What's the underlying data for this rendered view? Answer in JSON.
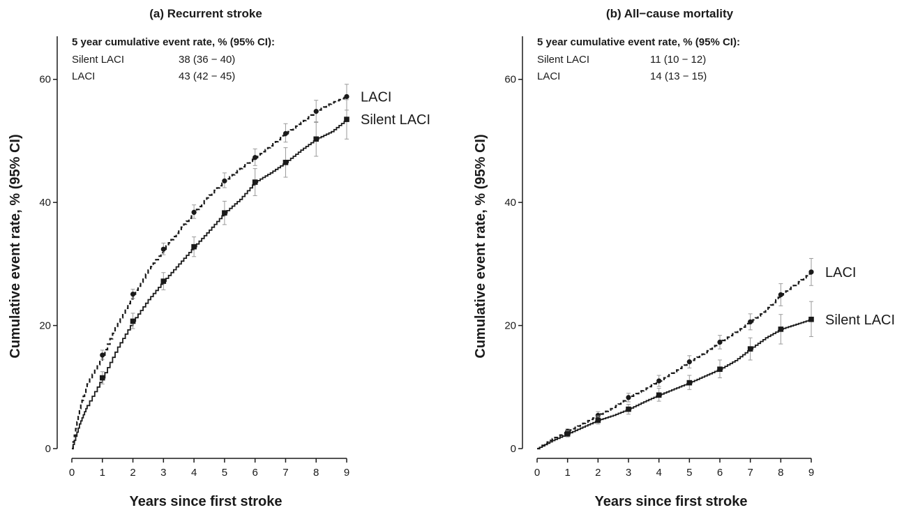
{
  "chart_data": [
    {
      "type": "line",
      "title": "(a) Recurrent stroke",
      "xlabel": "Years since first stroke",
      "ylabel": "Cumulative event rate, % (95% CI)",
      "xlim": [
        0,
        9
      ],
      "ylim": [
        0,
        67
      ],
      "xticks": [
        "0",
        "1",
        "2",
        "3",
        "4",
        "5",
        "6",
        "7",
        "8",
        "9"
      ],
      "yticks": [
        "0",
        "20",
        "40",
        "60"
      ],
      "grid": false,
      "legend_title": "5 year cumulative event rate, % (95% CI):",
      "legend_rows": [
        {
          "name": "Silent LACI",
          "value": "38 (36 − 40)"
        },
        {
          "name": "LACI",
          "value": "43 (42 − 45)"
        }
      ],
      "series": [
        {
          "name": "LACI",
          "style": "dashed",
          "marker": "circle",
          "x": [
            0,
            0.25,
            0.5,
            1,
            1.5,
            2,
            2.5,
            3,
            3.5,
            4,
            4.5,
            5,
            5.5,
            6,
            6.5,
            7,
            7.5,
            8,
            8.5,
            9
          ],
          "y": [
            0,
            6.5,
            10.5,
            15.2,
            20.5,
            25.1,
            29,
            32.4,
            35.5,
            38.4,
            41.2,
            43.5,
            45.5,
            47.3,
            49.2,
            51.2,
            53,
            54.8,
            56.2,
            57.2
          ],
          "markers_x": [
            1,
            2,
            3,
            4,
            5,
            6,
            7,
            8,
            9
          ],
          "markers_y": [
            15.2,
            25.1,
            32.4,
            38.4,
            43.5,
            47.3,
            51.2,
            54.8,
            57.2
          ],
          "ci_low": [
            14.5,
            24.4,
            31.5,
            37.4,
            42.4,
            46,
            49.8,
            53,
            55
          ],
          "ci_high": [
            16,
            25.9,
            33.4,
            39.6,
            44.8,
            48.7,
            52.8,
            56.6,
            59.2
          ]
        },
        {
          "name": "Silent LACI",
          "style": "solid",
          "marker": "square",
          "x": [
            0,
            0.25,
            0.5,
            1,
            1.5,
            2,
            2.5,
            3,
            3.5,
            4,
            4.5,
            5,
            5.5,
            6,
            6.5,
            7,
            7.5,
            8,
            8.5,
            9
          ],
          "y": [
            0,
            4,
            7,
            11.5,
            16.5,
            20.7,
            24.2,
            27.2,
            30,
            32.8,
            35.5,
            38.3,
            40.5,
            43.3,
            44.8,
            46.5,
            48.5,
            50.3,
            51.5,
            53.5
          ],
          "markers_x": [
            1,
            2,
            3,
            4,
            5,
            6,
            7,
            8,
            9
          ],
          "markers_y": [
            11.5,
            20.7,
            27.2,
            32.8,
            38.3,
            43.3,
            46.5,
            50.3,
            53.5
          ],
          "ci_low": [
            10.5,
            19.5,
            25.8,
            31.2,
            36.4,
            41.1,
            44.1,
            47.5,
            50.3
          ],
          "ci_high": [
            12.5,
            22,
            28.6,
            34.4,
            40.2,
            45.5,
            48.9,
            53.1,
            56.7
          ]
        }
      ]
    },
    {
      "type": "line",
      "title": "(b) All−cause mortality",
      "xlabel": "Years since first stroke",
      "ylabel": "Cumulative event rate, % (95% CI)",
      "xlim": [
        0,
        9
      ],
      "ylim": [
        0,
        67
      ],
      "xticks": [
        "0",
        "1",
        "2",
        "3",
        "4",
        "5",
        "6",
        "7",
        "8",
        "9"
      ],
      "yticks": [
        "0",
        "20",
        "40",
        "60"
      ],
      "grid": false,
      "legend_title": "5 year cumulative event rate, % (95% CI):",
      "legend_rows": [
        {
          "name": "Silent LACI",
          "value": "11 (10 − 12)"
        },
        {
          "name": "LACI",
          "value": "14 (13 − 15)"
        }
      ],
      "series": [
        {
          "name": "LACI",
          "style": "dashed",
          "marker": "circle",
          "x": [
            0,
            0.5,
            1,
            1.5,
            2,
            2.5,
            3,
            3.5,
            4,
            4.5,
            5,
            5.5,
            6,
            6.5,
            7,
            7.5,
            8,
            8.5,
            9
          ],
          "y": [
            0,
            1.6,
            2.8,
            4.1,
            5.4,
            6.7,
            8.3,
            9.6,
            11,
            12.5,
            14.1,
            15.6,
            17.3,
            18.9,
            20.6,
            22.5,
            25,
            26.8,
            28.7
          ],
          "markers_x": [
            1,
            2,
            3,
            4,
            5,
            6,
            7,
            8,
            9
          ],
          "markers_y": [
            2.8,
            5.4,
            8.3,
            11,
            14.1,
            17.3,
            20.6,
            25,
            28.7
          ],
          "ci_low": [
            2.4,
            4.8,
            7.6,
            10.1,
            13.1,
            16.2,
            19.3,
            23.2,
            26.5
          ],
          "ci_high": [
            3.2,
            6,
            9,
            11.9,
            15.1,
            18.4,
            21.9,
            26.8,
            30.9
          ]
        },
        {
          "name": "Silent LACI",
          "style": "solid",
          "marker": "square",
          "x": [
            0,
            0.5,
            1,
            1.5,
            2,
            2.5,
            3,
            3.5,
            4,
            4.5,
            5,
            5.5,
            6,
            6.5,
            7,
            7.5,
            8,
            8.5,
            9
          ],
          "y": [
            0,
            1.3,
            2.4,
            3.5,
            4.6,
            5.4,
            6.4,
            7.6,
            8.7,
            9.7,
            10.7,
            11.8,
            12.9,
            14.3,
            16.2,
            18,
            19.4,
            20.2,
            21
          ],
          "markers_x": [
            1,
            2,
            3,
            4,
            5,
            6,
            7,
            8,
            9
          ],
          "markers_y": [
            2.4,
            4.6,
            6.4,
            8.7,
            10.7,
            12.9,
            16.2,
            19.4,
            21
          ],
          "ci_low": [
            1.9,
            4,
            5.6,
            7.7,
            9.6,
            11.5,
            14.4,
            17,
            18.2
          ],
          "ci_high": [
            2.9,
            5.3,
            7.2,
            9.8,
            11.9,
            14.4,
            18,
            21.8,
            23.9
          ]
        }
      ]
    }
  ]
}
